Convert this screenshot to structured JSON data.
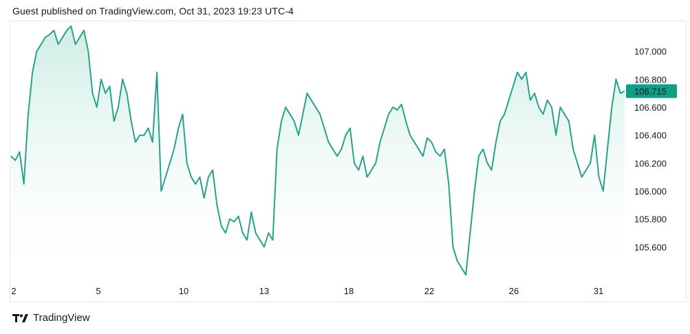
{
  "header": {
    "published_text": "Guest published on TradingView.com, Oct 31, 2023 19:23 UTC-4"
  },
  "footer": {
    "brand": "TradingView",
    "logo_icon": "tradingview-logo-icon"
  },
  "colors": {
    "line": "#26a28a",
    "fill_top": "#c8ebe1",
    "fill_bottom": "#ffffff",
    "price_tag": "#0e9f85"
  },
  "chart_data": {
    "type": "area",
    "title": "",
    "xlabel": "",
    "ylabel": "",
    "ylim": [
      105.4,
      107.2
    ],
    "grid": false,
    "x_ticks": [
      "2",
      "5",
      "10",
      "13",
      "18",
      "22",
      "26",
      "31"
    ],
    "y_ticks": [
      "107.000",
      "106.800",
      "106.600",
      "106.400",
      "106.200",
      "106.000",
      "105.800",
      "105.600"
    ],
    "last_value_label": "106.715",
    "last_value": 106.715,
    "series": [
      {
        "values": [
          106.25,
          106.22,
          106.28,
          106.05,
          106.55,
          106.85,
          107.0,
          107.05,
          107.1,
          107.12,
          107.15,
          107.05,
          107.1,
          107.15,
          107.18,
          107.05,
          107.1,
          107.15,
          107.0,
          106.7,
          106.6,
          106.8,
          106.7,
          106.75,
          106.5,
          106.6,
          106.8,
          106.7,
          106.5,
          106.35,
          106.4,
          106.4,
          106.45,
          106.35,
          106.85,
          106.0,
          106.1,
          106.2,
          106.3,
          106.45,
          106.55,
          106.2,
          106.1,
          106.05,
          106.1,
          105.95,
          106.1,
          106.15,
          105.9,
          105.75,
          105.7,
          105.8,
          105.78,
          105.82,
          105.7,
          105.65,
          105.85,
          105.7,
          105.65,
          105.6,
          105.7,
          105.65,
          106.3,
          106.5,
          106.6,
          106.55,
          106.5,
          106.4,
          106.55,
          106.7,
          106.65,
          106.6,
          106.55,
          106.45,
          106.35,
          106.3,
          106.25,
          106.3,
          106.4,
          106.45,
          106.2,
          106.15,
          106.25,
          106.1,
          106.15,
          106.2,
          106.35,
          106.45,
          106.55,
          106.6,
          106.58,
          106.62,
          106.5,
          106.4,
          106.35,
          106.3,
          106.25,
          106.38,
          106.35,
          106.28,
          106.25,
          106.3,
          106.05,
          105.6,
          105.5,
          105.45,
          105.4,
          105.7,
          106.0,
          106.25,
          106.3,
          106.2,
          106.15,
          106.35,
          106.5,
          106.55,
          106.65,
          106.75,
          106.85,
          106.8,
          106.85,
          106.65,
          106.7,
          106.6,
          106.55,
          106.65,
          106.6,
          106.4,
          106.6,
          106.55,
          106.5,
          106.3,
          106.2,
          106.1,
          106.15,
          106.2,
          106.4,
          106.1,
          106.0,
          106.3,
          106.6,
          106.8,
          106.7,
          106.715
        ]
      }
    ]
  }
}
